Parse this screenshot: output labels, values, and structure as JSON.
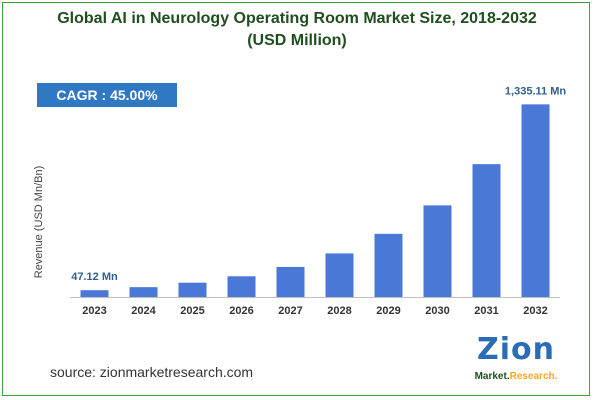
{
  "title_line1": "Global AI in Neurology Operating Room Market Size, 2018-2032",
  "title_line2": "(USD Million)",
  "cagr": "CAGR : 45.00%",
  "source": "source: zionmarketresearch.com",
  "logo": {
    "word": "Zion",
    "sub_main": "Market.",
    "sub_accent": "Research."
  },
  "colors": {
    "bar": "#4a78d6",
    "cagr_box": "#2f78c4",
    "title": "#1f4e1f",
    "border": "#3aa23a"
  },
  "chart_data": {
    "type": "bar",
    "categories": [
      "2023",
      "2024",
      "2025",
      "2026",
      "2027",
      "2028",
      "2029",
      "2030",
      "2031",
      "2032"
    ],
    "values": [
      47.12,
      68.3,
      99.1,
      143.6,
      208.3,
      302.0,
      437.9,
      635.0,
      920.7,
      1335.11
    ],
    "ylabel": "Revenue (USD Mn/Bn)",
    "xlabel": "",
    "ylim": [
      0,
      1400
    ],
    "data_labels": [
      {
        "index": 0,
        "text": "47.12 Mn"
      },
      {
        "index": 9,
        "text": "1,335.11 Mn"
      }
    ],
    "grid": false,
    "legend": "none"
  }
}
